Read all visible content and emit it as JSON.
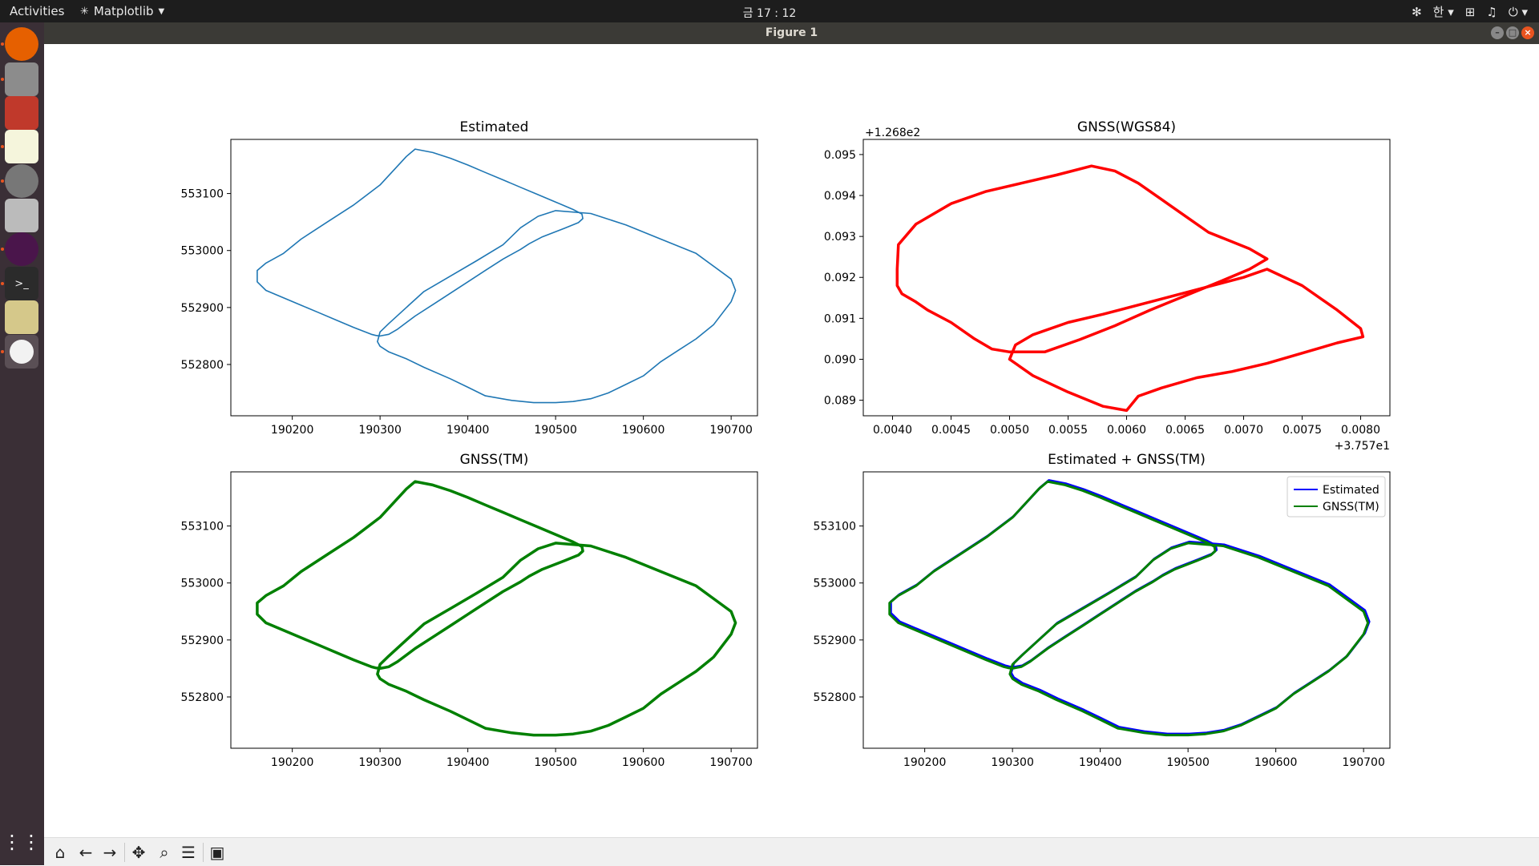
{
  "topbar": {
    "activities": "Activities",
    "app_name": "Matplotlib",
    "clock": "금 17 : 12",
    "input_method": "한"
  },
  "window": {
    "title": "Figure 1"
  },
  "dock_icons": [
    "firefox-icon",
    "files-icon",
    "app-icon",
    "text-editor-icon",
    "settings-icon",
    "camera-icon",
    "slack-icon",
    "terminal-icon",
    "image-viewer-icon",
    "matplotlib-icon"
  ],
  "toolbar_icons": [
    "home-icon",
    "back-icon",
    "forward-icon",
    "pan-icon",
    "zoom-icon",
    "configure-subplots-icon",
    "save-icon"
  ],
  "chart_data": [
    {
      "type": "line",
      "title": "Estimated",
      "xlim": [
        190130,
        190730
      ],
      "ylim": [
        552710,
        553195
      ],
      "xticks": [
        190200,
        190300,
        190400,
        190500,
        190600,
        190700
      ],
      "yticks": [
        552800,
        552900,
        553000,
        553100
      ],
      "series": [
        {
          "color": "#1f77b4",
          "width": 1.6
        }
      ]
    },
    {
      "type": "line",
      "title": "GNSS(WGS84)",
      "offset_x": "+3.757e1",
      "offset_y": "+1.268e2",
      "xlim": [
        0.00375,
        0.00825
      ],
      "ylim": [
        0.08862,
        0.09537
      ],
      "xticks": [
        0.004,
        0.0045,
        0.005,
        0.0055,
        0.006,
        0.0065,
        0.007,
        0.0075,
        0.008
      ],
      "xtick_labels": [
        "0.0040",
        "0.0045",
        "0.0050",
        "0.0055",
        "0.0060",
        "0.0065",
        "0.0070",
        "0.0075",
        "0.0080"
      ],
      "yticks": [
        0.089,
        0.09,
        0.091,
        0.092,
        0.093,
        0.094,
        0.095
      ],
      "ytick_labels": [
        "0.089",
        "0.090",
        "0.091",
        "0.092",
        "0.093",
        "0.094",
        "0.095"
      ],
      "series": [
        {
          "color": "#ff0000",
          "width": 3.5
        }
      ]
    },
    {
      "type": "line",
      "title": "GNSS(TM)",
      "xlim": [
        190130,
        190730
      ],
      "ylim": [
        552710,
        553195
      ],
      "xticks": [
        190200,
        190300,
        190400,
        190500,
        190600,
        190700
      ],
      "yticks": [
        552800,
        552900,
        553000,
        553100
      ],
      "series": [
        {
          "color": "#008000",
          "width": 3.5
        }
      ]
    },
    {
      "type": "line",
      "title": "Estimated + GNSS(TM)",
      "xlim": [
        190130,
        190730
      ],
      "ylim": [
        552710,
        553195
      ],
      "xticks": [
        190200,
        190300,
        190400,
        190500,
        190600,
        190700
      ],
      "yticks": [
        552800,
        552900,
        553000,
        553100
      ],
      "legend": "top-right",
      "series": [
        {
          "name": "Estimated",
          "color": "#0000ff",
          "width": 3.0
        },
        {
          "name": "GNSS(TM)",
          "color": "#008000",
          "width": 3.0
        }
      ]
    }
  ],
  "track_tm": {
    "x": [
      190340,
      190360,
      190380,
      190400,
      190420,
      190440,
      190460,
      190480,
      190500,
      190520,
      190530,
      190531,
      190526,
      190510,
      190485,
      190470,
      190460,
      190440,
      190420,
      190400,
      190380,
      190360,
      190340,
      190320,
      190310,
      190300,
      190295,
      190290,
      190270,
      190250,
      190230,
      190210,
      190190,
      190170,
      190160,
      190160,
      190170,
      190190,
      190210,
      190240,
      190270,
      190300,
      190315,
      190330
    ],
    "y": [
      553178,
      553172,
      553162,
      553150,
      553137,
      553124,
      553111,
      553098,
      553085,
      553072,
      553064,
      553056,
      553049,
      553039,
      553024,
      553012,
      553002,
      552985,
      552965,
      552945,
      552925,
      552905,
      552885,
      552862,
      552853,
      552850,
      552851,
      552853,
      552865,
      552878,
      552891,
      552904,
      552917,
      552930,
      552945,
      552965,
      552978,
      552995,
      553020,
      553050,
      553080,
      553115,
      553140,
      553165
    ],
    "x2": [
      190460,
      190480,
      190500,
      190540,
      190580,
      190620,
      190660,
      190700,
      190705,
      190700,
      190680,
      190660,
      190640,
      190620,
      190600,
      190580,
      190560,
      190540,
      190520,
      190500,
      190475,
      190450,
      190420,
      190400,
      190380,
      190350,
      190330,
      190310,
      190300,
      190297,
      190300,
      190310,
      190330,
      190350,
      190380,
      190410,
      190440
    ],
    "y2": [
      553040,
      553060,
      553070,
      553065,
      553045,
      553020,
      552995,
      552950,
      552930,
      552910,
      552870,
      552845,
      552825,
      552805,
      552780,
      552765,
      552750,
      552740,
      552735,
      552733,
      552733,
      552737,
      552745,
      552760,
      552775,
      552795,
      552810,
      552822,
      552832,
      552840,
      552857,
      552872,
      552900,
      552928,
      552955,
      552982,
      553010
    ]
  },
  "track_wgs": {
    "x": [
      0.00405,
      0.0042,
      0.0045,
      0.0048,
      0.0051,
      0.0054,
      0.0057,
      0.0059,
      0.0061,
      0.0063,
      0.0065,
      0.0067,
      0.00705,
      0.0072,
      0.00705,
      0.0068,
      0.0065,
      0.0062,
      0.0059,
      0.0056,
      0.0053,
      0.005,
      0.00485,
      0.0047,
      0.0045,
      0.0043,
      0.0042,
      0.00408,
      0.00404,
      0.00404
    ],
    "y": [
      0.0928,
      0.0933,
      0.0938,
      0.0941,
      0.0943,
      0.0945,
      0.09472,
      0.0946,
      0.0943,
      0.0939,
      0.0935,
      0.0931,
      0.0927,
      0.09245,
      0.0922,
      0.0919,
      0.09155,
      0.0912,
      0.09082,
      0.09048,
      0.09018,
      0.09018,
      0.09025,
      0.0905,
      0.0909,
      0.0912,
      0.0914,
      0.0916,
      0.0918,
      0.0922
    ],
    "x2": [
      0.0058,
      0.0062,
      0.0066,
      0.007,
      0.0072,
      0.0075,
      0.0078,
      0.008,
      0.00802,
      0.0078,
      0.0075,
      0.0072,
      0.0069,
      0.0066,
      0.0063,
      0.0061,
      0.006,
      0.0058,
      0.0055,
      0.0052,
      0.005,
      0.00505,
      0.0052,
      0.0055
    ],
    "y2": [
      0.0911,
      0.0914,
      0.0917,
      0.092,
      0.0922,
      0.0918,
      0.0912,
      0.09075,
      0.09055,
      0.0904,
      0.09015,
      0.0899,
      0.0897,
      0.08955,
      0.0893,
      0.0891,
      0.08875,
      0.08885,
      0.0892,
      0.0896,
      0.09,
      0.09035,
      0.0906,
      0.0909
    ]
  }
}
